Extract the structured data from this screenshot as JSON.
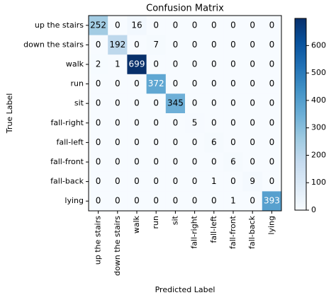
{
  "chart_data": {
    "type": "heatmap",
    "title": "Confusion Matrix",
    "xlabel": "Predicted Label",
    "ylabel": "True Label",
    "x_categories": [
      "up the stairs",
      "down the stairs",
      "walk",
      "run",
      "sit",
      "fall-right",
      "fall-left",
      "fall-front",
      "fall-back",
      "lying"
    ],
    "y_categories": [
      "up the stairs",
      "down the stairs",
      "walk",
      "run",
      "sit",
      "fall-right",
      "fall-left",
      "fall-front",
      "fall-back",
      "lying"
    ],
    "values": [
      [
        252,
        0,
        16,
        0,
        0,
        0,
        0,
        0,
        0,
        0
      ],
      [
        0,
        192,
        0,
        7,
        0,
        0,
        0,
        0,
        0,
        0
      ],
      [
        2,
        1,
        699,
        0,
        0,
        0,
        0,
        0,
        0,
        0
      ],
      [
        0,
        0,
        0,
        372,
        0,
        0,
        0,
        0,
        0,
        0
      ],
      [
        0,
        0,
        0,
        0,
        345,
        0,
        0,
        0,
        0,
        0
      ],
      [
        0,
        0,
        0,
        0,
        0,
        5,
        0,
        0,
        0,
        0
      ],
      [
        0,
        0,
        0,
        0,
        0,
        0,
        6,
        0,
        0,
        0
      ],
      [
        0,
        0,
        0,
        0,
        0,
        0,
        0,
        6,
        0,
        0
      ],
      [
        0,
        0,
        0,
        0,
        0,
        0,
        1,
        0,
        9,
        0
      ],
      [
        0,
        0,
        0,
        0,
        0,
        0,
        0,
        1,
        0,
        393
      ]
    ],
    "colorscale": [
      "#f7fbff",
      "#deebf7",
      "#c6dbef",
      "#9ecae1",
      "#6baed6",
      "#4292c6",
      "#2171b5",
      "#08519c",
      "#08306b"
    ],
    "clim": [
      0,
      699
    ],
    "cticks": [
      0,
      100,
      200,
      300,
      400,
      500,
      600
    ]
  }
}
